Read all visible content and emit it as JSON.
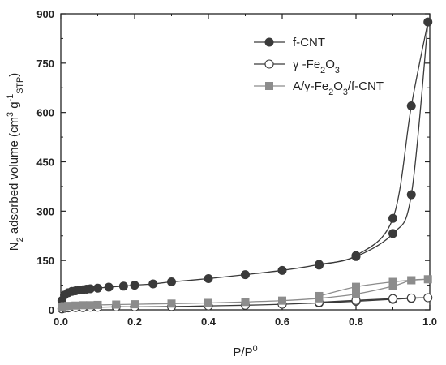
{
  "chart_data": {
    "type": "scatter",
    "title": "",
    "xlabel": {
      "main": "P/P",
      "sup": "0"
    },
    "ylabel": {
      "parts": [
        {
          "t": "N",
          "s": "base"
        },
        {
          "t": "2",
          "s": "sub"
        },
        {
          "t": " adsorbed volume (cm",
          "s": "base"
        },
        {
          "t": "3",
          "s": "sup"
        },
        {
          "t": " g",
          "s": "base"
        },
        {
          "t": "-1",
          "s": "sup"
        },
        {
          "t": "STP",
          "s": "sub"
        },
        {
          "t": ")",
          "s": "base"
        }
      ]
    },
    "xlim": [
      0.0,
      1.0
    ],
    "ylim": [
      0,
      900
    ],
    "xticks": [
      "0.0",
      "0.2",
      "0.4",
      "0.6",
      "0.8",
      "1.0"
    ],
    "yticks": [
      "0",
      "150",
      "300",
      "450",
      "600",
      "750",
      "900"
    ],
    "grid": false,
    "legend_position": "top-right",
    "series": [
      {
        "name": "f-CNT",
        "legend_parts": [
          {
            "t": "f-CNT",
            "s": "base"
          }
        ],
        "color": "#3a3a3a",
        "marker": "circle-filled",
        "adsorption": [
          [
            0.003,
            28
          ],
          [
            0.01,
            45
          ],
          [
            0.02,
            52
          ],
          [
            0.03,
            56
          ],
          [
            0.04,
            58
          ],
          [
            0.05,
            60
          ],
          [
            0.06,
            61
          ],
          [
            0.07,
            63
          ],
          [
            0.08,
            64
          ],
          [
            0.1,
            66
          ],
          [
            0.13,
            69
          ],
          [
            0.17,
            72
          ],
          [
            0.2,
            75
          ],
          [
            0.25,
            79
          ],
          [
            0.3,
            85
          ],
          [
            0.4,
            95
          ],
          [
            0.5,
            107
          ],
          [
            0.6,
            120
          ],
          [
            0.7,
            138
          ],
          [
            0.8,
            165
          ],
          [
            0.9,
            278
          ],
          [
            0.95,
            620
          ],
          [
            0.995,
            875
          ]
        ],
        "desorption": [
          [
            0.995,
            875
          ],
          [
            0.95,
            350
          ],
          [
            0.9,
            232
          ],
          [
            0.8,
            162
          ],
          [
            0.7,
            136
          ]
        ]
      },
      {
        "name": "γ-Fe2O3",
        "legend_parts": [
          {
            "t": "γ -Fe",
            "s": "base"
          },
          {
            "t": "2",
            "s": "sub"
          },
          {
            "t": "O",
            "s": "base"
          },
          {
            "t": "3",
            "s": "sub"
          }
        ],
        "color": "#3a3a3a",
        "marker": "circle-open",
        "adsorption": [
          [
            0.003,
            3
          ],
          [
            0.01,
            5
          ],
          [
            0.02,
            6
          ],
          [
            0.04,
            7
          ],
          [
            0.06,
            7
          ],
          [
            0.08,
            8
          ],
          [
            0.1,
            8
          ],
          [
            0.15,
            9
          ],
          [
            0.2,
            9
          ],
          [
            0.3,
            10
          ],
          [
            0.4,
            12
          ],
          [
            0.5,
            14
          ],
          [
            0.6,
            17
          ],
          [
            0.7,
            21
          ],
          [
            0.8,
            26
          ],
          [
            0.9,
            32
          ],
          [
            0.95,
            35
          ],
          [
            0.995,
            37
          ]
        ],
        "desorption": [
          [
            0.995,
            37
          ],
          [
            0.95,
            36
          ],
          [
            0.9,
            34
          ],
          [
            0.8,
            29
          ],
          [
            0.7,
            23
          ]
        ]
      },
      {
        "name": "A/γ-Fe2O3/f-CNT",
        "legend_parts": [
          {
            "t": "A/γ-Fe",
            "s": "base"
          },
          {
            "t": "2",
            "s": "sub"
          },
          {
            "t": "O",
            "s": "base"
          },
          {
            "t": "3",
            "s": "sub"
          },
          {
            "t": "/f-CNT",
            "s": "base"
          }
        ],
        "color": "#8c8c8c",
        "marker": "square-filled",
        "adsorption": [
          [
            0.003,
            8
          ],
          [
            0.01,
            11
          ],
          [
            0.02,
            12
          ],
          [
            0.04,
            13
          ],
          [
            0.06,
            14
          ],
          [
            0.08,
            14
          ],
          [
            0.1,
            15
          ],
          [
            0.15,
            16
          ],
          [
            0.2,
            17
          ],
          [
            0.3,
            19
          ],
          [
            0.4,
            21
          ],
          [
            0.5,
            24
          ],
          [
            0.6,
            28
          ],
          [
            0.7,
            35
          ],
          [
            0.8,
            48
          ],
          [
            0.9,
            72
          ],
          [
            0.95,
            90
          ],
          [
            0.995,
            93
          ]
        ],
        "desorption": [
          [
            0.995,
            93
          ],
          [
            0.95,
            90
          ],
          [
            0.9,
            85
          ],
          [
            0.8,
            70
          ],
          [
            0.7,
            42
          ]
        ]
      }
    ]
  }
}
